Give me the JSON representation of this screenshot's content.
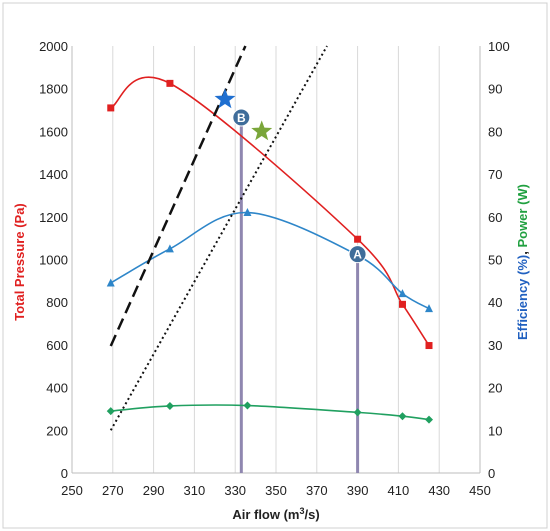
{
  "chart_data": {
    "type": "line",
    "x_axis": {
      "label_prefix": "Air flow (m",
      "label_sup": "3",
      "label_suffix": "/s)",
      "min": 250,
      "max": 450,
      "step": 20,
      "ticks": [
        "250",
        "270",
        "290",
        "310",
        "330",
        "350",
        "370",
        "390",
        "410",
        "430",
        "450"
      ]
    },
    "y_left": {
      "label": "Total Pressure (Pa)",
      "min": 0,
      "max": 2000,
      "step": 200,
      "ticks": [
        "0",
        "200",
        "400",
        "600",
        "800",
        "1000",
        "1200",
        "1400",
        "1600",
        "1800",
        "2000"
      ],
      "color": "#e02020"
    },
    "y_right": {
      "label_part1": "Efficiency (%)",
      "label_sep": ", ",
      "label_part2": "Power (W)",
      "min": 0,
      "max": 100,
      "step": 10,
      "ticks": [
        "0",
        "10",
        "20",
        "30",
        "40",
        "50",
        "60",
        "70",
        "80",
        "90",
        "100"
      ],
      "color1": "#2060c0",
      "color2": "#20a040"
    },
    "grid": {
      "vertical": true,
      "horizontal": false
    },
    "series": [
      {
        "axis": "left",
        "color": "#e02020",
        "marker": "square",
        "x": [
          269,
          298,
          390,
          412,
          425
        ],
        "y": [
          1710,
          1825,
          1095,
          790,
          597
        ]
      },
      {
        "axis": "right",
        "color": "#2e86c9",
        "marker": "triangle",
        "x": [
          269,
          298,
          336,
          390,
          412,
          425
        ],
        "y": [
          44.5,
          52.5,
          61,
          51,
          42,
          38.5
        ]
      },
      {
        "axis": "right",
        "color": "#20a060",
        "marker": "diamond",
        "x": [
          269,
          298,
          336,
          390,
          412,
          425
        ],
        "y": [
          14.5,
          15.7,
          15.8,
          14.2,
          13.3,
          12.5
        ]
      },
      {
        "axis": "left",
        "color": "#111111",
        "style": "dashed",
        "x": [
          269,
          335
        ],
        "y": [
          595,
          2000
        ]
      },
      {
        "axis": "left",
        "color": "#111111",
        "style": "dotted",
        "x": [
          269,
          375
        ],
        "y": [
          200,
          2000
        ]
      }
    ],
    "annotations": [
      {
        "type": "star",
        "color": "#1f6fd0",
        "x": 325,
        "y": 1750
      },
      {
        "type": "star",
        "color": "#7aa63a",
        "x": 343,
        "y": 1600
      },
      {
        "type": "point",
        "label": "B",
        "x": 333,
        "y": 1665,
        "fill": "#3f6d9a"
      },
      {
        "type": "point",
        "label": "A",
        "x": 390,
        "y": 1025,
        "fill": "#3f6d9a"
      },
      {
        "type": "vline",
        "x": 333,
        "from": 0,
        "to": 1665,
        "color": "#8f87b0"
      },
      {
        "type": "vline",
        "x": 390,
        "from": 0,
        "to": 1025,
        "color": "#8f87b0"
      }
    ]
  }
}
